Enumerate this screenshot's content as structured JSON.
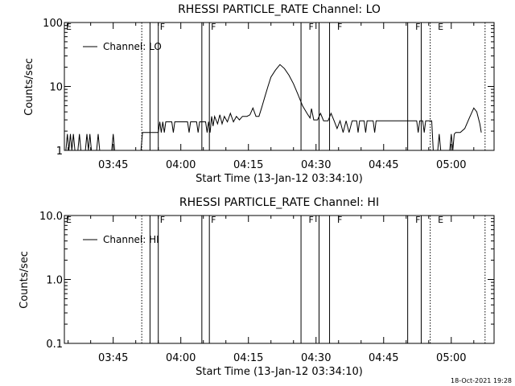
{
  "footer": {
    "timestamp": "18-Oct-2021 19:28"
  },
  "chart_data": [
    {
      "type": "line",
      "title": "RHESSI PARTICLE_RATE Channel: LO",
      "xlabel": "Start Time (13-Jan-12 03:34:10)",
      "ylabel": "Counts/sec",
      "y_scale": "log",
      "xlim": [
        "03:34:10",
        "05:09:30"
      ],
      "ylim": [
        1,
        100
      ],
      "x_ticks": [
        "03:45",
        "04:00",
        "04:15",
        "04:30",
        "04:45",
        "05:00"
      ],
      "y_ticks": [
        "1",
        "10",
        "100"
      ],
      "legend": {
        "position": "top-left",
        "entries": [
          "Channel: LO"
        ]
      },
      "grid": false,
      "series": [
        {
          "name": "Channel: LO",
          "points": [
            [
              "03:34:30",
              1
            ],
            [
              "03:34:50",
              1.8
            ],
            [
              "03:35:10",
              1
            ],
            [
              "03:35:30",
              1.8
            ],
            [
              "03:35:50",
              1
            ],
            [
              "03:36:10",
              1.8
            ],
            [
              "03:36:30",
              1
            ],
            [
              "03:37:10",
              1
            ],
            [
              "03:37:30",
              1.8
            ],
            [
              "03:37:50",
              1
            ],
            [
              "03:38:50",
              1
            ],
            [
              "03:39:10",
              1.8
            ],
            [
              "03:39:30",
              1
            ],
            [
              "03:39:50",
              1.8
            ],
            [
              "03:40:10",
              1
            ],
            [
              "03:41:20",
              1
            ],
            [
              "03:41:40",
              1.8
            ],
            [
              "03:42:00",
              1
            ],
            [
              "03:44:40",
              1
            ],
            [
              "03:45:00",
              1.8
            ],
            [
              "03:45:20",
              1
            ],
            [
              "03:51:10",
              1
            ],
            [
              "03:51:30",
              1.9
            ],
            [
              "03:55:00",
              1.9
            ],
            [
              "03:55:20",
              2.8
            ],
            [
              "03:55:40",
              1.9
            ],
            [
              "03:56:00",
              2.8
            ],
            [
              "03:56:20",
              1.9
            ],
            [
              "03:56:40",
              2.8
            ],
            [
              "03:58:00",
              2.8
            ],
            [
              "03:58:20",
              1.9
            ],
            [
              "03:58:40",
              2.8
            ],
            [
              "04:01:30",
              2.8
            ],
            [
              "04:01:50",
              1.9
            ],
            [
              "04:02:10",
              2.8
            ],
            [
              "04:03:30",
              2.8
            ],
            [
              "04:03:50",
              1.9
            ],
            [
              "04:04:10",
              2.8
            ],
            [
              "04:05:30",
              2.8
            ],
            [
              "04:05:50",
              1.9
            ],
            [
              "04:06:10",
              2.8
            ],
            [
              "04:06:30",
              1.9
            ],
            [
              "04:06:50",
              3.4
            ],
            [
              "04:07:10",
              2.4
            ],
            [
              "04:07:30",
              3.4
            ],
            [
              "04:08:10",
              2.6
            ],
            [
              "04:08:40",
              3.6
            ],
            [
              "04:09:10",
              2.6
            ],
            [
              "04:09:40",
              3.4
            ],
            [
              "04:10:20",
              2.8
            ],
            [
              "04:11:00",
              3.8
            ],
            [
              "04:11:40",
              2.8
            ],
            [
              "04:12:20",
              3.4
            ],
            [
              "04:13:00",
              3.0
            ],
            [
              "04:13:40",
              3.4
            ],
            [
              "04:14:40",
              3.4
            ],
            [
              "04:15:20",
              3.6
            ],
            [
              "04:16:00",
              4.6
            ],
            [
              "04:16:40",
              3.4
            ],
            [
              "04:17:20",
              3.4
            ],
            [
              "04:18:00",
              4.8
            ],
            [
              "04:18:40",
              7.0
            ],
            [
              "04:19:20",
              10
            ],
            [
              "04:20:00",
              14
            ],
            [
              "04:21:00",
              18
            ],
            [
              "04:22:00",
              22
            ],
            [
              "04:23:00",
              19
            ],
            [
              "04:24:00",
              15
            ],
            [
              "04:25:00",
              11
            ],
            [
              "04:26:00",
              7.5
            ],
            [
              "04:27:00",
              5.0
            ],
            [
              "04:28:00",
              3.8
            ],
            [
              "04:28:40",
              3.2
            ],
            [
              "04:29:00",
              4.5
            ],
            [
              "04:29:30",
              3.0
            ],
            [
              "04:30:20",
              3.0
            ],
            [
              "04:31:00",
              3.8
            ],
            [
              "04:31:40",
              2.9
            ],
            [
              "04:32:40",
              2.9
            ],
            [
              "04:33:20",
              3.8
            ],
            [
              "04:34:00",
              2.9
            ],
            [
              "04:34:40",
              2.2
            ],
            [
              "04:35:20",
              2.9
            ],
            [
              "04:36:00",
              1.9
            ],
            [
              "04:36:40",
              2.9
            ],
            [
              "04:37:20",
              1.9
            ],
            [
              "04:38:00",
              2.9
            ],
            [
              "04:39:00",
              2.9
            ],
            [
              "04:39:20",
              1.9
            ],
            [
              "04:39:40",
              2.9
            ],
            [
              "04:40:40",
              2.9
            ],
            [
              "04:41:00",
              1.9
            ],
            [
              "04:41:20",
              2.9
            ],
            [
              "04:42:40",
              2.9
            ],
            [
              "04:43:00",
              1.9
            ],
            [
              "04:43:20",
              2.9
            ],
            [
              "04:52:20",
              2.9
            ],
            [
              "04:52:40",
              1.9
            ],
            [
              "04:53:00",
              2.9
            ],
            [
              "04:53:40",
              2.9
            ],
            [
              "04:54:00",
              1.9
            ],
            [
              "04:54:20",
              2.9
            ],
            [
              "04:55:40",
              2.9
            ],
            [
              "04:56:00",
              1
            ],
            [
              "04:57:00",
              1
            ],
            [
              "04:57:20",
              1.8
            ],
            [
              "04:57:40",
              1
            ],
            [
              "04:59:40",
              1
            ],
            [
              "05:00:00",
              1.8
            ],
            [
              "05:00:20",
              1
            ],
            [
              "05:00:40",
              1.8
            ],
            [
              "05:01:00",
              1.9
            ],
            [
              "05:02:00",
              1.9
            ],
            [
              "05:03:00",
              2.2
            ],
            [
              "05:04:00",
              3.2
            ],
            [
              "05:05:00",
              4.6
            ],
            [
              "05:05:40",
              4.0
            ],
            [
              "05:06:20",
              2.6
            ],
            [
              "05:06:40",
              1.9
            ]
          ]
        }
      ]
    },
    {
      "type": "line",
      "title": "RHESSI PARTICLE_RATE Channel: HI",
      "xlabel": "Start Time (13-Jan-12 03:34:10)",
      "ylabel": "Counts/sec",
      "y_scale": "log",
      "xlim": [
        "03:34:10",
        "05:09:30"
      ],
      "ylim": [
        0.1,
        10
      ],
      "x_ticks": [
        "03:45",
        "04:00",
        "04:15",
        "04:30",
        "04:45",
        "05:00"
      ],
      "y_ticks": [
        "0.1",
        "1.0",
        "10.0"
      ],
      "legend": {
        "position": "top-left",
        "entries": [
          "Channel: HI"
        ]
      },
      "grid": false,
      "series": [
        {
          "name": "Channel: HI",
          "points": []
        }
      ]
    }
  ],
  "markers": {
    "labels": [
      {
        "time": "03:34:10",
        "text": "E"
      },
      {
        "time": "03:55:00",
        "text": "F"
      },
      {
        "time": "04:06:20",
        "text": "F"
      },
      {
        "time": "04:28:00",
        "text": "F"
      },
      {
        "time": "04:34:20",
        "text": "F"
      },
      {
        "time": "04:51:40",
        "text": "F"
      },
      {
        "time": "04:56:40",
        "text": "E"
      }
    ],
    "solid": [
      "03:53:10",
      "03:55:00",
      "04:04:40",
      "04:06:20",
      "04:26:40",
      "04:30:40",
      "04:33:00",
      "04:50:20",
      "04:53:20"
    ],
    "dotted": [
      "03:51:20",
      "04:55:20",
      "05:07:30"
    ]
  }
}
